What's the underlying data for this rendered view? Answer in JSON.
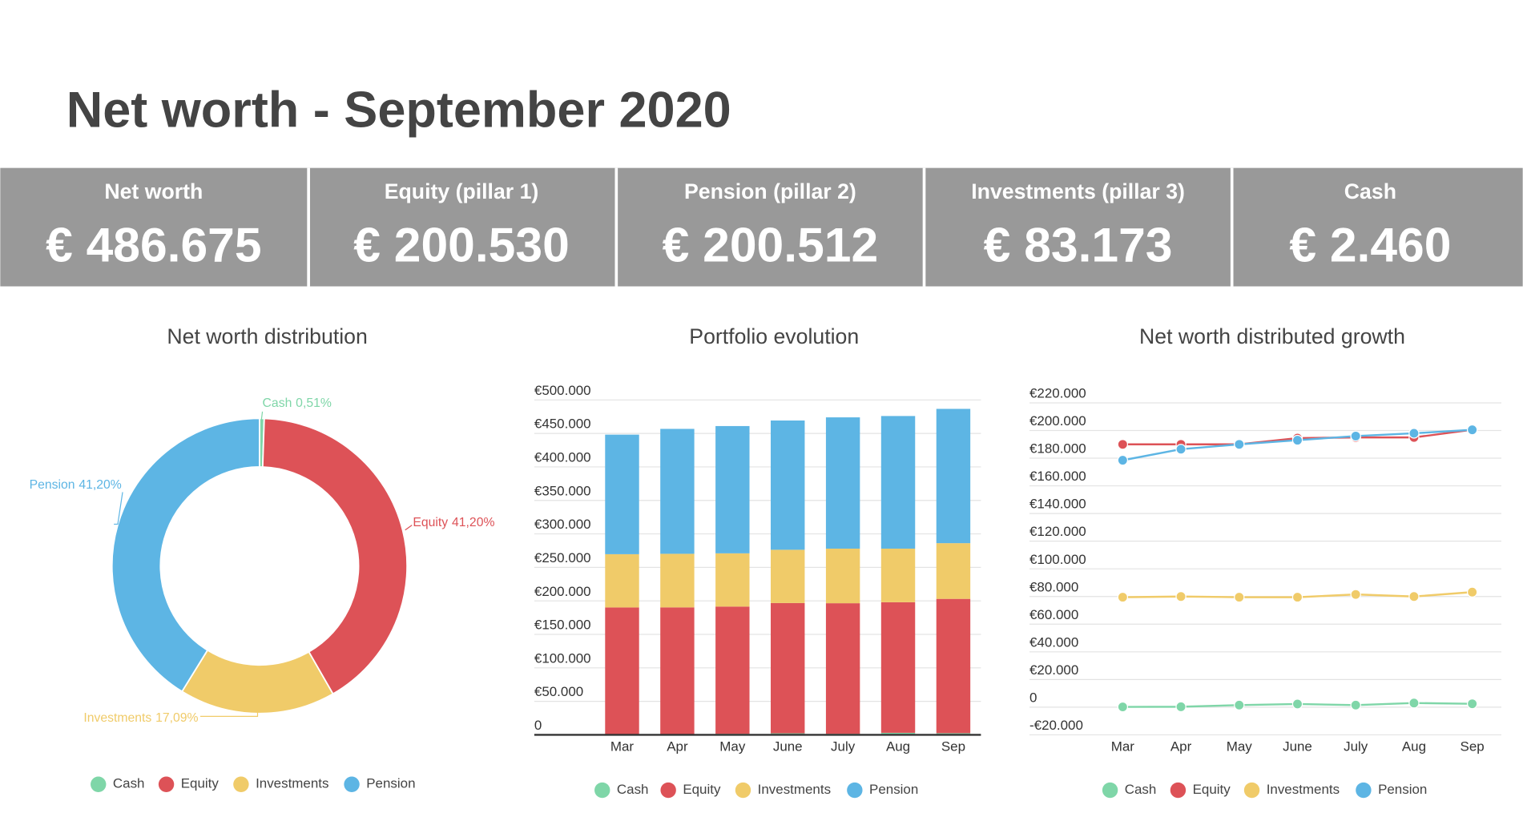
{
  "title": "Net worth - September 2020",
  "kpis": [
    {
      "label": "Net worth",
      "value": "€ 486.675"
    },
    {
      "label": "Equity (pillar 1)",
      "value": "€ 200.530"
    },
    {
      "label": "Pension (pillar 2)",
      "value": "€ 200.512"
    },
    {
      "label": "Investments (pillar 3)",
      "value": "€ 83.173"
    },
    {
      "label": "Cash",
      "value": "€ 2.460"
    }
  ],
  "chart_data": [
    {
      "type": "pie",
      "title": "Net worth distribution",
      "categories": [
        "Cash",
        "Equity",
        "Investments",
        "Pension"
      ],
      "values": [
        0.51,
        41.2,
        17.09,
        41.2
      ],
      "value_labels": [
        "0,51%",
        "41,20%",
        "17,09%",
        "41,20%"
      ],
      "colors": [
        "#7fd6a8",
        "#dd5257",
        "#f0cb69",
        "#5db5e4"
      ],
      "legend": "bottom"
    },
    {
      "type": "bar",
      "title": "Portfolio evolution",
      "stacked": true,
      "categories": [
        "Mar",
        "Apr",
        "May",
        "June",
        "July",
        "Aug",
        "Sep"
      ],
      "series": [
        {
          "name": "Cash",
          "color": "#7fd6a8",
          "values": [
            200,
            300,
            1500,
            2300,
            1500,
            3000,
            2460
          ]
        },
        {
          "name": "Equity",
          "color": "#dd5257",
          "values": [
            190000,
            190000,
            190000,
            194500,
            195000,
            195000,
            200530
          ]
        },
        {
          "name": "Investments",
          "color": "#f0cb69",
          "values": [
            79500,
            80000,
            79500,
            79500,
            81500,
            80000,
            83173
          ]
        },
        {
          "name": "Pension",
          "color": "#5db5e4",
          "values": [
            178500,
            186500,
            190000,
            193000,
            196000,
            198000,
            200512
          ]
        }
      ],
      "ylim": [
        0,
        500000
      ],
      "yticks": [
        0,
        {
          "value": 50000,
          "label": "€50.000"
        },
        {
          "value": 100000,
          "label": "€100.000"
        },
        {
          "value": 150000,
          "label": "€150.000"
        },
        {
          "value": 200000,
          "label": "€200.000"
        },
        {
          "value": 250000,
          "label": "€250.000"
        },
        {
          "value": 300000,
          "label": "€300.000"
        },
        {
          "value": 350000,
          "label": "€350.000"
        },
        {
          "value": 400000,
          "label": "€400.000"
        },
        {
          "value": 450000,
          "label": "€450.000"
        },
        {
          "value": 500000,
          "label": "€500.000"
        }
      ],
      "grid": true,
      "legend": "bottom"
    },
    {
      "type": "line",
      "title": "Net worth distributed growth",
      "categories": [
        "Mar",
        "Apr",
        "May",
        "June",
        "July",
        "Aug",
        "Sep"
      ],
      "series": [
        {
          "name": "Cash",
          "color": "#7fd6a8",
          "values": [
            200,
            300,
            1500,
            2300,
            1500,
            3000,
            2460
          ]
        },
        {
          "name": "Equity",
          "color": "#dd5257",
          "values": [
            190000,
            190000,
            190000,
            194500,
            195000,
            195000,
            200530
          ]
        },
        {
          "name": "Investments",
          "color": "#f0cb69",
          "values": [
            79500,
            80000,
            79500,
            79500,
            81500,
            80000,
            83173
          ]
        },
        {
          "name": "Pension",
          "color": "#5db5e4",
          "values": [
            178500,
            186500,
            190000,
            193000,
            196000,
            198000,
            200512
          ]
        }
      ],
      "ylim": [
        -20000,
        220000
      ],
      "yticks": [
        {
          "value": -20000,
          "label": "-€20.000"
        },
        0,
        {
          "value": 20000,
          "label": "€20.000"
        },
        {
          "value": 40000,
          "label": "€40.000"
        },
        {
          "value": 60000,
          "label": "€60.000"
        },
        {
          "value": 80000,
          "label": "€80.000"
        },
        {
          "value": 100000,
          "label": "€100.000"
        },
        {
          "value": 120000,
          "label": "€120.000"
        },
        {
          "value": 140000,
          "label": "€140.000"
        },
        {
          "value": 160000,
          "label": "€160.000"
        },
        {
          "value": 180000,
          "label": "€180.000"
        },
        {
          "value": 200000,
          "label": "€200.000"
        },
        {
          "value": 220000,
          "label": "€220.000"
        }
      ],
      "grid": true,
      "legend": "bottom"
    }
  ]
}
